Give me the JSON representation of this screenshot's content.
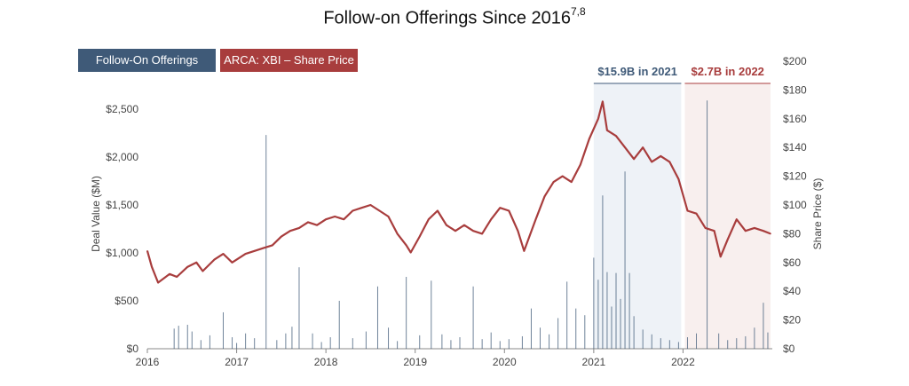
{
  "title": {
    "main": "Follow-on Offerings Since 2016",
    "superscript": "7,8"
  },
  "legend": {
    "deals_label": "Follow-On Offerings",
    "xbi_label": "ARCA: XBI – Share Price",
    "deals_color": "#3f5a78",
    "xbi_color": "#a83d3d"
  },
  "chart_data": {
    "type": "line",
    "title": "Follow-on Offerings Since 2016",
    "xlabel": "",
    "ylabel_left": "Deal Value ($M)",
    "ylabel_right": "Share Price ($)",
    "x_ticks": [
      "2016",
      "2017",
      "2018",
      "2019",
      "2020",
      "2021",
      "2022"
    ],
    "x_range": [
      2016.0,
      2023.0
    ],
    "y_left_ticks": [
      "$0",
      "$500",
      "$1,000",
      "$1,500",
      "$2,000",
      "$2,500"
    ],
    "y_left_range": [
      0,
      3000
    ],
    "y_right_ticks": [
      "$0",
      "$20",
      "$40",
      "$60",
      "$80",
      "$100",
      "$120",
      "$140",
      "$160",
      "$180",
      "$200"
    ],
    "y_right_range": [
      0,
      200
    ],
    "grid": false,
    "legend_position": "top-left",
    "annotations": [
      {
        "label": "$15.9B in 2021",
        "x_start": 2021.0,
        "x_end": 2021.98,
        "color": "#3f5a78",
        "fill": "#eef2f7"
      },
      {
        "label": "$2.7B in 2022",
        "x_start": 2022.02,
        "x_end": 2022.98,
        "color": "#a83d3d",
        "fill": "#f8efee"
      }
    ],
    "series": [
      {
        "name": "ARCA: XBI – Share Price",
        "axis": "right",
        "color": "#a83d3d",
        "points": [
          [
            2016.0,
            68
          ],
          [
            2016.05,
            57
          ],
          [
            2016.12,
            46
          ],
          [
            2016.25,
            52
          ],
          [
            2016.33,
            50
          ],
          [
            2016.45,
            57
          ],
          [
            2016.55,
            60
          ],
          [
            2016.62,
            54
          ],
          [
            2016.75,
            62
          ],
          [
            2016.85,
            66
          ],
          [
            2016.95,
            60
          ],
          [
            2017.1,
            66
          ],
          [
            2017.2,
            68
          ],
          [
            2017.3,
            70
          ],
          [
            2017.4,
            72
          ],
          [
            2017.5,
            78
          ],
          [
            2017.6,
            82
          ],
          [
            2017.7,
            84
          ],
          [
            2017.8,
            88
          ],
          [
            2017.9,
            86
          ],
          [
            2018.0,
            90
          ],
          [
            2018.1,
            92
          ],
          [
            2018.2,
            90
          ],
          [
            2018.3,
            96
          ],
          [
            2018.4,
            98
          ],
          [
            2018.5,
            100
          ],
          [
            2018.6,
            96
          ],
          [
            2018.7,
            92
          ],
          [
            2018.8,
            80
          ],
          [
            2018.9,
            72
          ],
          [
            2018.95,
            67
          ],
          [
            2019.05,
            78
          ],
          [
            2019.15,
            90
          ],
          [
            2019.25,
            96
          ],
          [
            2019.35,
            86
          ],
          [
            2019.45,
            82
          ],
          [
            2019.55,
            86
          ],
          [
            2019.65,
            82
          ],
          [
            2019.75,
            80
          ],
          [
            2019.85,
            90
          ],
          [
            2019.95,
            98
          ],
          [
            2020.05,
            96
          ],
          [
            2020.15,
            82
          ],
          [
            2020.22,
            68
          ],
          [
            2020.35,
            90
          ],
          [
            2020.45,
            106
          ],
          [
            2020.55,
            116
          ],
          [
            2020.65,
            120
          ],
          [
            2020.75,
            116
          ],
          [
            2020.85,
            128
          ],
          [
            2020.95,
            146
          ],
          [
            2021.05,
            160
          ],
          [
            2021.1,
            172
          ],
          [
            2021.15,
            152
          ],
          [
            2021.25,
            148
          ],
          [
            2021.35,
            140
          ],
          [
            2021.45,
            132
          ],
          [
            2021.55,
            140
          ],
          [
            2021.65,
            130
          ],
          [
            2021.75,
            134
          ],
          [
            2021.85,
            130
          ],
          [
            2021.95,
            118
          ],
          [
            2022.05,
            96
          ],
          [
            2022.15,
            94
          ],
          [
            2022.25,
            84
          ],
          [
            2022.35,
            82
          ],
          [
            2022.42,
            64
          ],
          [
            2022.5,
            76
          ],
          [
            2022.6,
            90
          ],
          [
            2022.7,
            82
          ],
          [
            2022.8,
            84
          ],
          [
            2022.9,
            82
          ],
          [
            2022.98,
            80
          ]
        ]
      },
      {
        "name": "Follow-On Offerings",
        "axis": "left",
        "color": "#3f5a78",
        "points": [
          [
            2016.3,
            210
          ],
          [
            2016.35,
            240
          ],
          [
            2016.45,
            250
          ],
          [
            2016.5,
            180
          ],
          [
            2016.6,
            90
          ],
          [
            2016.7,
            140
          ],
          [
            2016.85,
            380
          ],
          [
            2016.95,
            120
          ],
          [
            2017.0,
            60
          ],
          [
            2017.1,
            160
          ],
          [
            2017.2,
            110
          ],
          [
            2017.33,
            2230
          ],
          [
            2017.45,
            90
          ],
          [
            2017.55,
            160
          ],
          [
            2017.62,
            230
          ],
          [
            2017.7,
            850
          ],
          [
            2017.85,
            160
          ],
          [
            2017.95,
            70
          ],
          [
            2018.05,
            120
          ],
          [
            2018.15,
            500
          ],
          [
            2018.3,
            110
          ],
          [
            2018.45,
            180
          ],
          [
            2018.58,
            650
          ],
          [
            2018.7,
            220
          ],
          [
            2018.8,
            80
          ],
          [
            2018.9,
            750
          ],
          [
            2019.05,
            140
          ],
          [
            2019.18,
            710
          ],
          [
            2019.3,
            150
          ],
          [
            2019.4,
            90
          ],
          [
            2019.5,
            120
          ],
          [
            2019.65,
            650
          ],
          [
            2019.75,
            100
          ],
          [
            2019.85,
            170
          ],
          [
            2019.95,
            80
          ],
          [
            2020.05,
            100
          ],
          [
            2020.2,
            130
          ],
          [
            2020.3,
            420
          ],
          [
            2020.4,
            220
          ],
          [
            2020.5,
            150
          ],
          [
            2020.6,
            320
          ],
          [
            2020.7,
            700
          ],
          [
            2020.8,
            420
          ],
          [
            2020.9,
            350
          ],
          [
            2021.0,
            950
          ],
          [
            2021.05,
            720
          ],
          [
            2021.1,
            1600
          ],
          [
            2021.15,
            800
          ],
          [
            2021.2,
            440
          ],
          [
            2021.25,
            790
          ],
          [
            2021.3,
            520
          ],
          [
            2021.35,
            1850
          ],
          [
            2021.4,
            790
          ],
          [
            2021.45,
            340
          ],
          [
            2021.55,
            200
          ],
          [
            2021.65,
            150
          ],
          [
            2021.75,
            110
          ],
          [
            2021.85,
            90
          ],
          [
            2021.95,
            70
          ],
          [
            2022.05,
            120
          ],
          [
            2022.15,
            160
          ],
          [
            2022.27,
            2590
          ],
          [
            2022.4,
            160
          ],
          [
            2022.5,
            90
          ],
          [
            2022.6,
            110
          ],
          [
            2022.7,
            130
          ],
          [
            2022.8,
            220
          ],
          [
            2022.9,
            480
          ],
          [
            2022.95,
            170
          ]
        ]
      }
    ]
  }
}
